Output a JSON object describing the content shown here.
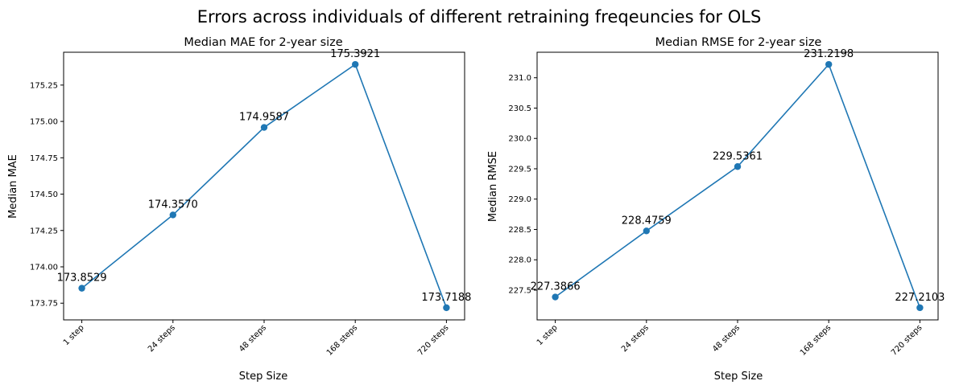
{
  "figure": {
    "suptitle": "Errors across individuals of different retraining freqeuncies for OLS",
    "line_color": "#1f77b4"
  },
  "chart_data": [
    {
      "type": "line",
      "title": "Median MAE for 2-year size",
      "xlabel": "Step Size",
      "ylabel": "Median MAE",
      "categories": [
        "1 step",
        "24 steps",
        "48 steps",
        "168 steps",
        "720 steps"
      ],
      "values": [
        173.8529,
        174.357,
        174.9587,
        175.3921,
        173.7188
      ],
      "data_labels": [
        "173.8529",
        "174.3570",
        "174.9587",
        "175.3921",
        "173.7188"
      ],
      "yticks": [
        173.75,
        174.0,
        174.25,
        174.5,
        174.75,
        175.0,
        175.25
      ],
      "ytick_labels": [
        "173.75",
        "174.00",
        "174.25",
        "174.50",
        "174.75",
        "175.00",
        "175.25"
      ],
      "ylim": [
        173.6352,
        175.4758
      ],
      "grid": false,
      "marker": "circle"
    },
    {
      "type": "line",
      "title": "Median RMSE for 2-year size",
      "xlabel": "Step Size",
      "ylabel": "Median RMSE",
      "categories": [
        "1 step",
        "24 steps",
        "48 steps",
        "168 steps",
        "720 steps"
      ],
      "values": [
        227.3866,
        228.4759,
        229.5361,
        231.2198,
        227.2103
      ],
      "data_labels": [
        "227.3866",
        "228.4759",
        "229.5361",
        "231.2198",
        "227.2103"
      ],
      "yticks": [
        227.5,
        228.0,
        228.5,
        229.0,
        229.5,
        230.0,
        230.5,
        231.0
      ],
      "ytick_labels": [
        "227.5",
        "228.0",
        "228.5",
        "229.0",
        "229.5",
        "230.0",
        "230.5",
        "231.0"
      ],
      "ylim": [
        227.0097,
        231.4203
      ],
      "grid": false,
      "marker": "circle"
    }
  ]
}
